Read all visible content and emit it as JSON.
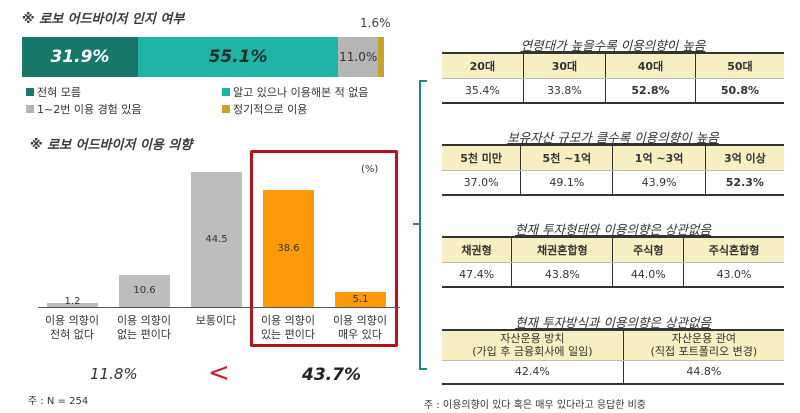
{
  "awareness": {
    "title": "※ 로보 어드바이저 인지 여부",
    "top_label": "1.6%",
    "segments": [
      {
        "label": "31.9%",
        "value": 31.9,
        "color": "#17786a",
        "text_color": "#ffffff"
      },
      {
        "label": "55.1%",
        "value": 55.1,
        "color": "#1fb5a6",
        "text_color": "#1d2b2a"
      },
      {
        "label": "11.0%",
        "value": 11.0,
        "color": "#b5b5b5",
        "text_color": "#333333"
      },
      {
        "label": "",
        "value": 1.6,
        "color": "#c9a22c",
        "text_color": "#333333"
      }
    ],
    "legend": [
      {
        "label": "전혀 모름",
        "color": "#17786a"
      },
      {
        "label": "알고 있으나 이용해본 적 없음",
        "color": "#1fb5a6"
      },
      {
        "label": "1~2번 이용 경험 있음",
        "color": "#b5b5b5"
      },
      {
        "label": "정기적으로 이용",
        "color": "#c9a22c"
      }
    ]
  },
  "intention": {
    "title": "※ 로보 어드바이저 이용 의향",
    "unit": "(%)",
    "bars": [
      {
        "label1": "이용 의향이",
        "label2": "전혀 없다",
        "value": "1.2",
        "color": "#bdbdbd"
      },
      {
        "label1": "이용 의향이",
        "label2": "없는 편이다",
        "value": "10.6",
        "color": "#bdbdbd"
      },
      {
        "label1": "보통이다",
        "label2": "",
        "value": "44.5",
        "color": "#bdbdbd"
      },
      {
        "label1": "이용 의향이",
        "label2": "있는 편이다",
        "value": "38.6",
        "color": "#fd9a08"
      },
      {
        "label1": "이용 의향이",
        "label2": "매우 있다",
        "value": "5.1",
        "color": "#fd9a08"
      }
    ],
    "summary_left": "11.8%",
    "comparator": "<",
    "summary_right": "43.7%",
    "note": "주 : N = 254"
  },
  "tables": {
    "age": {
      "title": "연령대가 높을수록 이용의향이 높음",
      "headers": [
        "20대",
        "30대",
        "40대",
        "50대"
      ],
      "values": [
        "35.4%",
        "33.8%",
        "52.8%",
        "50.8%"
      ]
    },
    "assets": {
      "title": "보유자산 규모가 클수록 이용의향이 높음",
      "headers": [
        "5천 미만",
        "5천 ~1억",
        "1억 ~3억",
        "3억 이상"
      ],
      "values": [
        "37.0%",
        "49.1%",
        "43.9%",
        "52.3%"
      ]
    },
    "invest_type": {
      "title": "현재 투자형태와 이용의향은 상관없음",
      "headers": [
        "채권형",
        "채권혼합형",
        "주식형",
        "주식혼합형"
      ],
      "values": [
        "47.4%",
        "43.8%",
        "44.0%",
        "43.0%"
      ]
    },
    "invest_method": {
      "title": "현재 투자방식과 이용의향은 상관없음",
      "headers": [
        {
          "line1": "자산운용 방치",
          "line2": "(가입 후 금융회사에 일임)"
        },
        {
          "line1": "자산운용 관여",
          "line2": "(직접 포트폴리오 변경)"
        }
      ],
      "values": [
        "42.4%",
        "44.8%"
      ]
    },
    "note": "주 : 이용의향이 있다 혹은 매우 있다라고 응답한 비중"
  },
  "chart_data": [
    {
      "type": "bar",
      "orientation": "horizontal-stacked",
      "title": "로보 어드바이저 인지 여부",
      "categories": [
        "전혀 모름",
        "알고 있으나 이용해본 적 없음",
        "1~2번 이용 경험 있음",
        "정기적으로 이용"
      ],
      "values": [
        31.9,
        55.1,
        11.0,
        1.6
      ],
      "unit": "%"
    },
    {
      "type": "bar",
      "title": "로보 어드바이저 이용 의향",
      "categories": [
        "이용 의향이 전혀 없다",
        "이용 의향이 없는 편이다",
        "보통이다",
        "이용 의향이 있는 편이다",
        "이용 의향이 매우 있다"
      ],
      "values": [
        1.2,
        10.6,
        44.5,
        38.6,
        5.1
      ],
      "ylabel": "(%)",
      "annotations": [
        "11.8%",
        "<",
        "43.7%"
      ],
      "note": "N = 254"
    },
    {
      "type": "table",
      "title": "연령대가 높을수록 이용의향이 높음",
      "categories": [
        "20대",
        "30대",
        "40대",
        "50대"
      ],
      "values": [
        35.4,
        33.8,
        52.8,
        50.8
      ]
    },
    {
      "type": "table",
      "title": "보유자산 규모가 클수록 이용의향이 높음",
      "categories": [
        "5천 미만",
        "5천 ~1억",
        "1억 ~3억",
        "3억 이상"
      ],
      "values": [
        37.0,
        49.1,
        43.9,
        52.3
      ]
    },
    {
      "type": "table",
      "title": "현재 투자형태와 이용의향은 상관없음",
      "categories": [
        "채권형",
        "채권혼합형",
        "주식형",
        "주식혼합형"
      ],
      "values": [
        47.4,
        43.8,
        44.0,
        43.0
      ]
    },
    {
      "type": "table",
      "title": "현재 투자방식과 이용의향은 상관없음",
      "categories": [
        "자산운용 방치 (가입 후 금융회사에 일임)",
        "자산운용 관여 (직접 포트폴리오 변경)"
      ],
      "values": [
        42.4,
        44.8
      ]
    }
  ]
}
